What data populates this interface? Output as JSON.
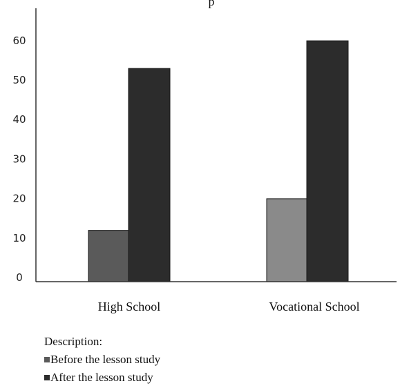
{
  "chart_data": {
    "type": "bar",
    "title_fragment": "p",
    "categories": [
      "High School",
      "Vocational School"
    ],
    "series": [
      {
        "name": "Before the lesson study",
        "values": [
          13,
          21
        ],
        "color": "#5a5a5a"
      },
      {
        "name": "After the lesson study",
        "values": [
          54,
          61
        ],
        "color": "#2c2c2c"
      }
    ],
    "category_series_colors": [
      [
        "#5a5a5a",
        "#2c2c2c"
      ],
      [
        "#8a8a8a",
        "#2c2c2c"
      ]
    ],
    "ylim": [
      0,
      66
    ],
    "yticks": [
      0,
      10,
      20,
      30,
      40,
      50,
      60
    ],
    "xlabel": "",
    "ylabel": "",
    "grid": false,
    "legend": {
      "title": "Description:",
      "placement": "bottom-left",
      "items": [
        "Before the lesson study",
        "After the lesson study"
      ]
    }
  }
}
